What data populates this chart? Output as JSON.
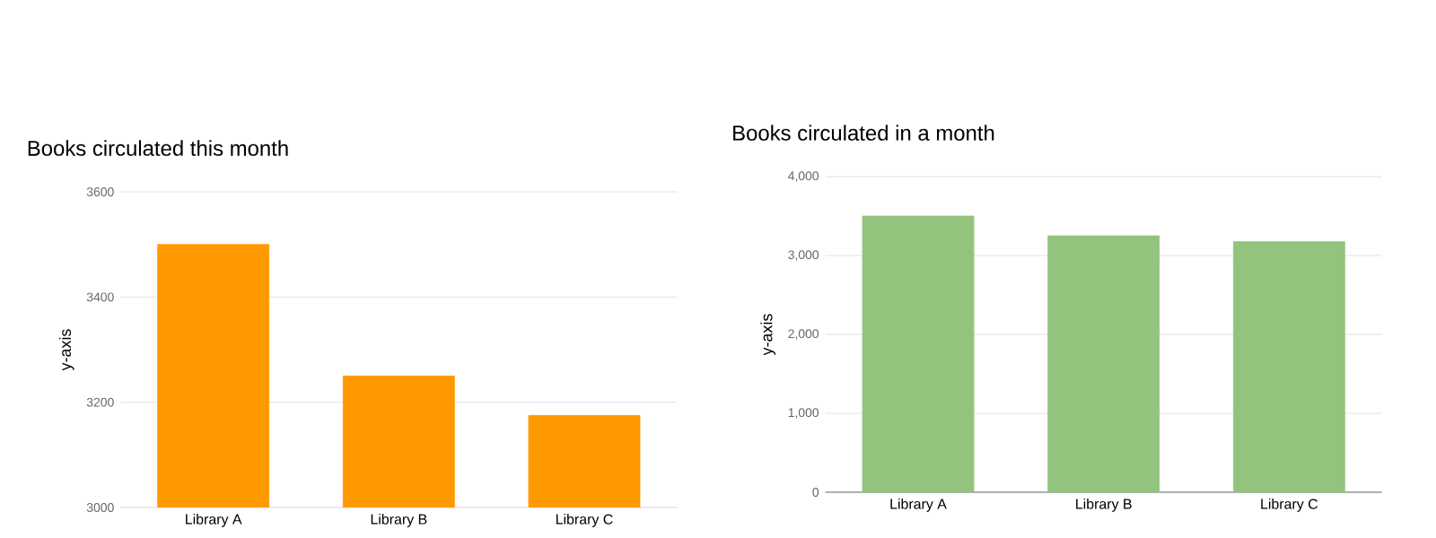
{
  "chart_data": [
    {
      "type": "bar",
      "title": "Books circulated this month",
      "ylabel": "y-axis",
      "categories": [
        "Library A",
        "Library B",
        "Library C"
      ],
      "values": [
        3500,
        3250,
        3175
      ],
      "color": "#ff9900",
      "ylim": [
        3000,
        3600
      ],
      "yticks": [
        3000,
        3200,
        3400,
        3600
      ],
      "grid": "y"
    },
    {
      "type": "bar",
      "title": "Books circulated in a month",
      "ylabel": "y-axis",
      "categories": [
        "Library A",
        "Library B",
        "Library C"
      ],
      "values": [
        3500,
        3250,
        3175
      ],
      "color": "#93c47d",
      "ylim": [
        0,
        4000
      ],
      "yticks": [
        {
          "value": 0,
          "label": "0"
        },
        {
          "value": 1000,
          "label": "1,000"
        },
        {
          "value": 2000,
          "label": "2,000"
        },
        {
          "value": 3000,
          "label": "3,000"
        },
        {
          "value": 4000,
          "label": "4,000"
        }
      ],
      "grid": "y"
    }
  ]
}
